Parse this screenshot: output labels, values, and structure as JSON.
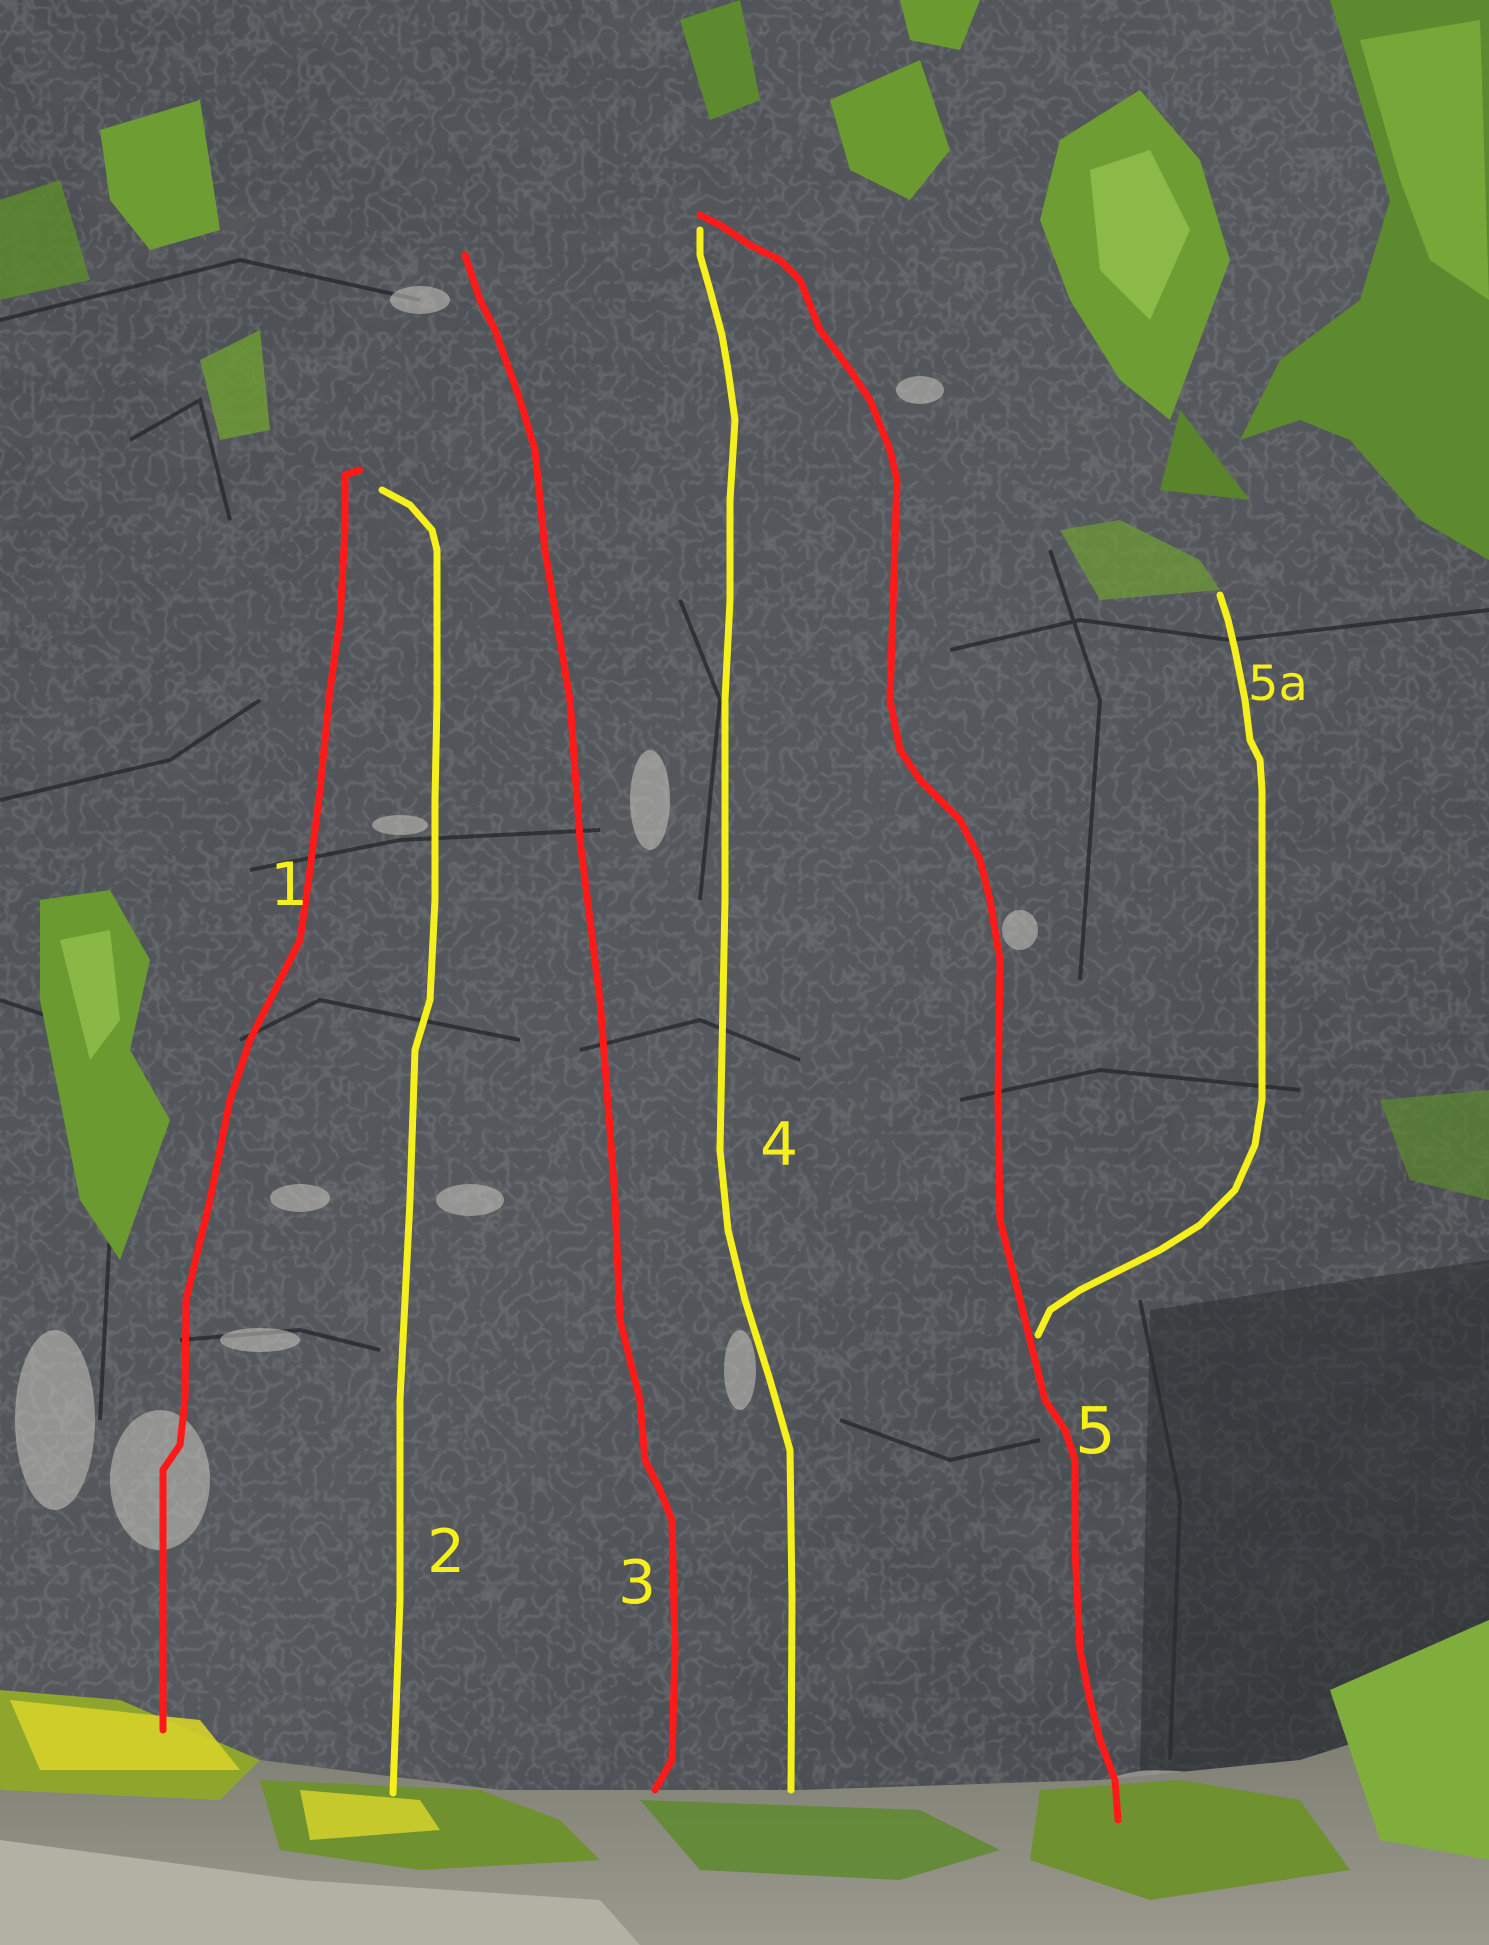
{
  "image": {
    "subject": "limestone crag",
    "route_colors": {
      "red": "#ff1a1a",
      "yellow": "#f4ef1d"
    }
  },
  "routes": [
    {
      "label": "1",
      "color": "red"
    },
    {
      "label": "2",
      "color": "yellow"
    },
    {
      "label": "3",
      "color": "red"
    },
    {
      "label": "4",
      "color": "yellow"
    },
    {
      "label": "5",
      "color": "red"
    },
    {
      "label": "5a",
      "color": "yellow"
    }
  ]
}
